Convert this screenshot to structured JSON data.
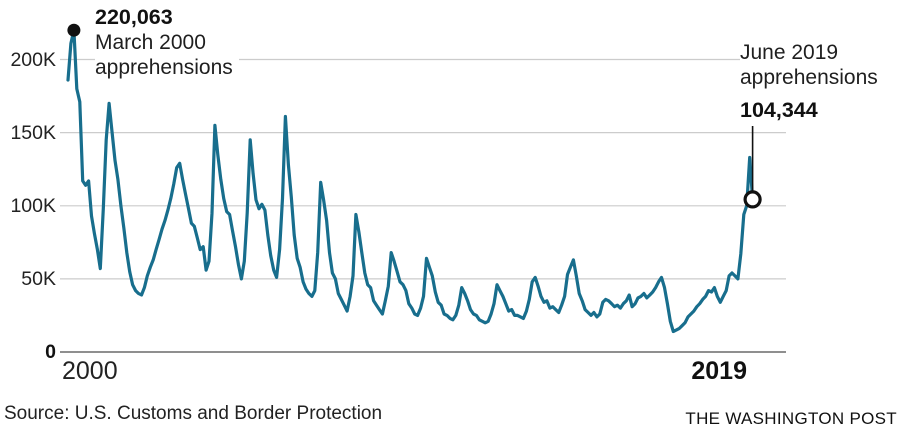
{
  "chart_data": {
    "type": "line",
    "description": "Monthly apprehensions at the U.S. border, January 2000 through June 2019",
    "x_axis": {
      "start": "January 2000",
      "end": "June 2019",
      "ticks": [
        {
          "label": "2000",
          "bold": false
        },
        {
          "label": "2019",
          "bold": true
        }
      ]
    },
    "y_axis": {
      "unit": "apprehensions (thousands)",
      "ticks": [
        {
          "label": "200K",
          "value": 200,
          "bold": false
        },
        {
          "label": "150K",
          "value": 150,
          "bold": false
        },
        {
          "label": "100K",
          "value": 100,
          "bold": false
        },
        {
          "label": "50K",
          "value": 50,
          "bold": false
        },
        {
          "label": "0",
          "value": 0,
          "bold": true
        }
      ],
      "range_thousands": [
        0,
        220.063
      ]
    },
    "series": [
      {
        "name": "Monthly apprehensions (thousands)",
        "color": "#186e8d",
        "values": [
          186,
          211,
          220.063,
          180,
          171,
          117,
          114,
          117,
          93,
          81,
          70,
          57,
          98,
          145,
          170,
          150,
          131,
          118,
          100,
          85,
          68,
          55,
          46,
          42,
          40,
          39,
          44,
          52,
          58,
          63,
          70,
          77,
          84,
          90,
          97,
          105,
          115,
          126,
          129,
          118,
          108,
          98,
          88,
          86,
          78,
          70,
          72,
          56,
          62,
          95,
          155,
          135,
          118,
          105,
          96,
          94,
          83,
          72,
          60,
          50,
          62,
          95,
          145,
          122,
          104,
          98,
          101,
          97,
          80,
          66,
          56,
          51,
          70,
          105,
          161,
          128,
          106,
          80,
          64,
          58,
          48,
          43,
          40,
          38,
          42,
          68,
          116,
          104,
          90,
          68,
          54,
          50,
          40,
          36,
          32,
          28,
          38,
          52,
          94,
          82,
          68,
          54,
          46,
          44,
          35,
          32,
          29,
          26,
          35,
          45,
          68,
          62,
          55,
          48,
          46,
          42,
          33,
          30,
          26,
          25,
          30,
          38,
          64,
          58,
          52,
          41,
          34,
          32,
          26,
          25,
          23,
          22,
          25,
          32,
          44,
          40,
          35,
          29,
          26,
          25,
          22,
          21,
          20,
          21,
          26,
          33,
          46,
          42,
          38,
          33,
          28,
          29,
          25,
          25,
          24,
          23,
          28,
          36,
          48,
          51,
          45,
          38,
          34,
          35,
          30,
          31,
          29,
          27,
          32,
          38,
          53,
          58,
          63,
          52,
          40,
          35,
          29,
          27,
          25,
          27,
          24,
          26,
          34,
          36,
          35,
          33,
          31,
          32,
          30,
          33,
          35,
          39,
          31,
          33,
          37,
          38,
          40,
          37,
          39,
          41,
          44,
          48,
          51,
          44,
          33,
          21,
          14,
          15,
          16,
          18,
          20,
          24,
          26,
          28,
          31,
          33,
          36,
          38,
          42,
          41,
          44,
          38,
          34,
          38,
          42,
          52,
          54,
          52,
          50,
          67,
          94,
          100,
          133,
          104.344
        ]
      }
    ],
    "annotations": [
      {
        "id": "march-2000-peak",
        "value_label": "220,063",
        "line1": "March 2000",
        "line2": "apprehensions",
        "month_index": 2,
        "value": 220.063,
        "marker": "filled-dot"
      },
      {
        "id": "june-2019-latest",
        "line1": "June 2019",
        "line2": "apprehensions",
        "value_label": "104,344",
        "month_index": 233,
        "value": 104.344,
        "marker": "open-circle"
      }
    ],
    "style": {
      "line_color": "#186e8d",
      "grid_color": "#cccccc",
      "axis_color": "#8f8f8f",
      "marker_color": "#111111",
      "text_color": "#1a1a1a"
    },
    "footer": {
      "source": "Source: U.S. Customs and Border Protection",
      "credit": "THE WASHINGTON POST"
    }
  }
}
